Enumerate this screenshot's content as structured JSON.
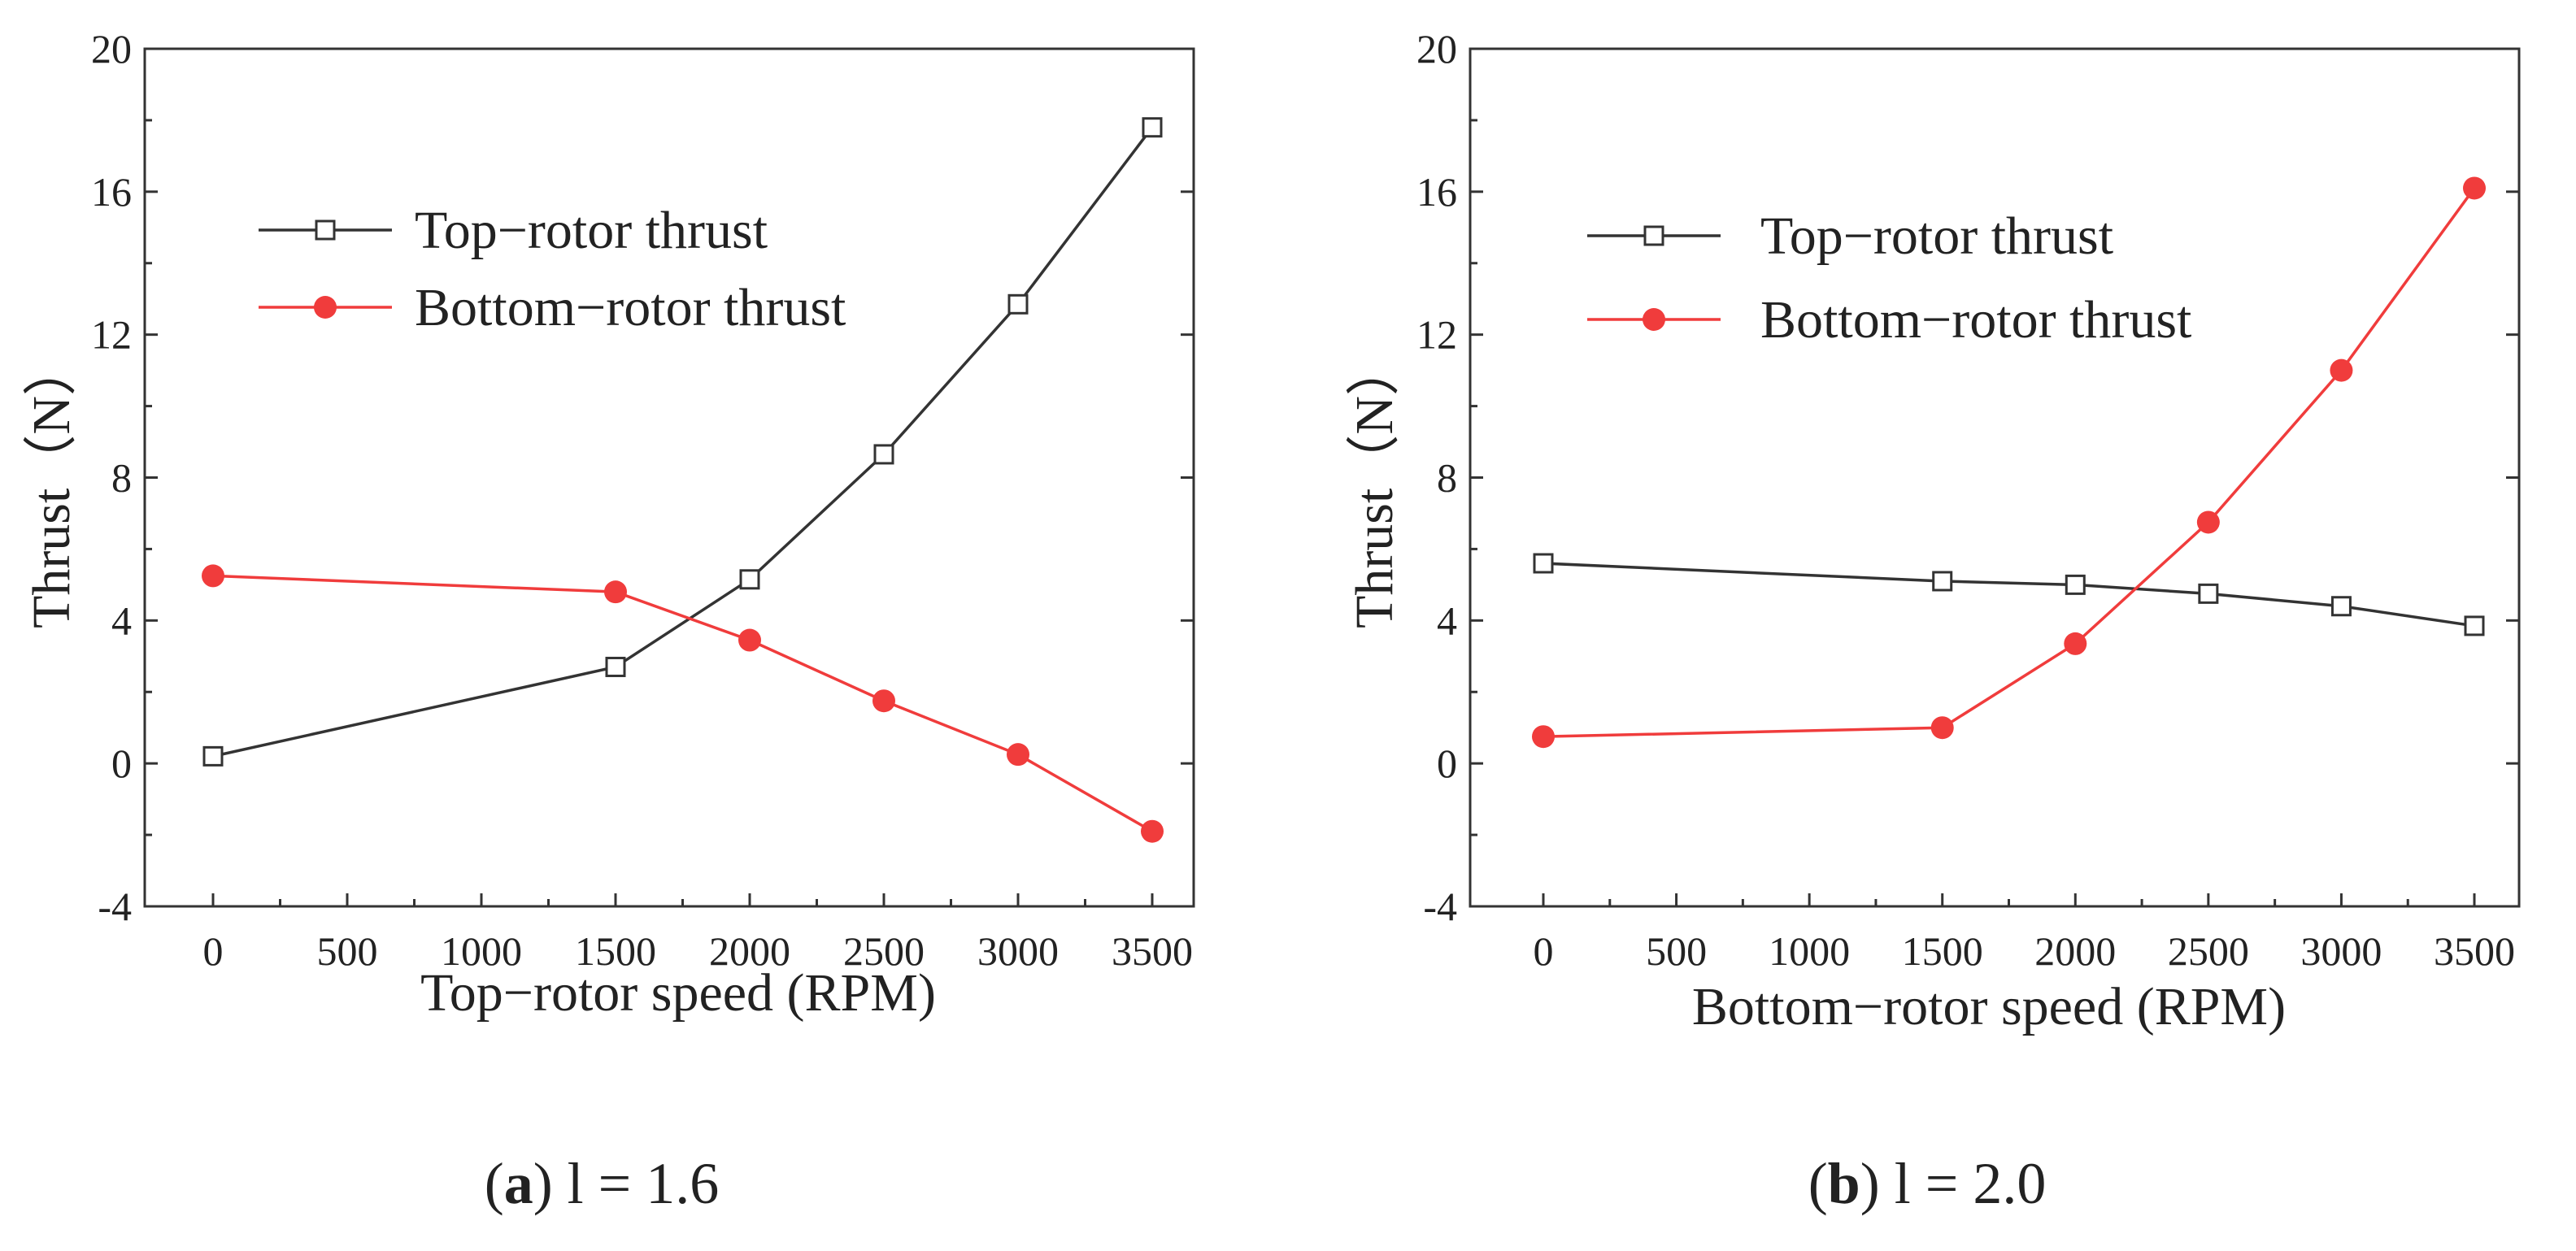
{
  "chart_data": [
    {
      "type": "line",
      "xlabel": "Top−rotor speed (RPM)",
      "ylabel": "Thrust（N）",
      "ylim": [
        -4,
        20
      ],
      "yticks": [
        -4,
        0,
        4,
        8,
        12,
        16,
        20
      ],
      "xticks": [
        0,
        500,
        1000,
        1500,
        2000,
        2500,
        3000,
        3500
      ],
      "legend_position": "upper-left",
      "caption_letter": "a",
      "caption_text": "l = 1.6",
      "series": [
        {
          "name": "Top−rotor thrust",
          "marker": "open-square",
          "color": "#333333",
          "x": [
            0,
            1500,
            2000,
            2500,
            3000,
            3500
          ],
          "values": [
            0.2,
            2.7,
            5.15,
            8.65,
            12.85,
            17.8
          ]
        },
        {
          "name": "Bottom−rotor thrust",
          "marker": "filled-circle",
          "color": "#f03c3c",
          "x": [
            0,
            1500,
            2000,
            2500,
            3000,
            3500
          ],
          "values": [
            5.25,
            4.8,
            3.45,
            1.75,
            0.25,
            -1.9
          ]
        }
      ]
    },
    {
      "type": "line",
      "xlabel": "Bottom−rotor speed (RPM)",
      "ylabel": "Thrust（N）",
      "ylim": [
        -4,
        20
      ],
      "yticks": [
        -4,
        0,
        4,
        8,
        12,
        16,
        20
      ],
      "xticks": [
        0,
        500,
        1000,
        1500,
        2000,
        2500,
        3000,
        3500
      ],
      "legend_position": "upper-left",
      "caption_letter": "b",
      "caption_text": "l = 2.0",
      "series": [
        {
          "name": "Top−rotor thrust",
          "marker": "open-square",
          "color": "#333333",
          "x": [
            0,
            1500,
            2000,
            2500,
            3000,
            3500
          ],
          "values": [
            5.6,
            5.1,
            5.0,
            4.75,
            4.4,
            3.85
          ]
        },
        {
          "name": "Bottom−rotor thrust",
          "marker": "filled-circle",
          "color": "#f03c3c",
          "x": [
            0,
            1500,
            2000,
            2500,
            3000,
            3500
          ],
          "values": [
            0.75,
            1.0,
            3.35,
            6.75,
            11.0,
            16.1
          ]
        }
      ]
    }
  ]
}
